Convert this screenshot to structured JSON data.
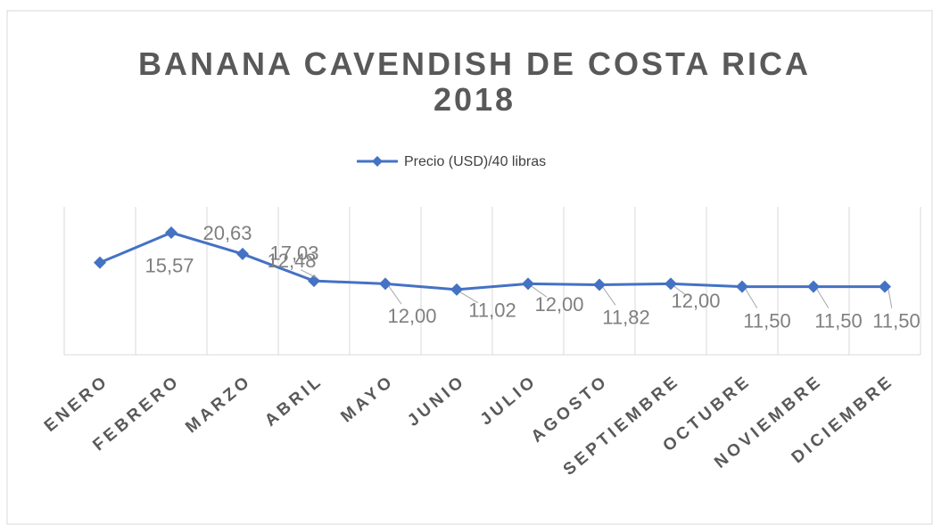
{
  "chart_data": {
    "type": "line",
    "title": [
      "BANANA CAVENDISH DE COSTA RICA",
      "2018"
    ],
    "categories": [
      "ENERO",
      "FEBRERO",
      "MARZO",
      "ABRIL",
      "MAYO",
      "JUNIO",
      "JULIO",
      "AGOSTO",
      "SEPTIEMBRE",
      "OCTUBRE",
      "NOVIEMBRE",
      "DICIEMBRE"
    ],
    "series": [
      {
        "name": "Precio (USD)/40 libras",
        "color": "#4472c4",
        "values": [
          15.57,
          20.63,
          17.03,
          12.48,
          12.0,
          11.02,
          12.0,
          11.82,
          12.0,
          11.5,
          11.5,
          11.5
        ],
        "value_labels": [
          "15,57",
          "20,63",
          "17,03",
          "12,48",
          "12,00",
          "11,02",
          "12,00",
          "11,82",
          "12,00",
          "11,50",
          "11,50",
          "11,50"
        ]
      }
    ],
    "ylim": [
      0,
      25
    ],
    "grid": true
  }
}
